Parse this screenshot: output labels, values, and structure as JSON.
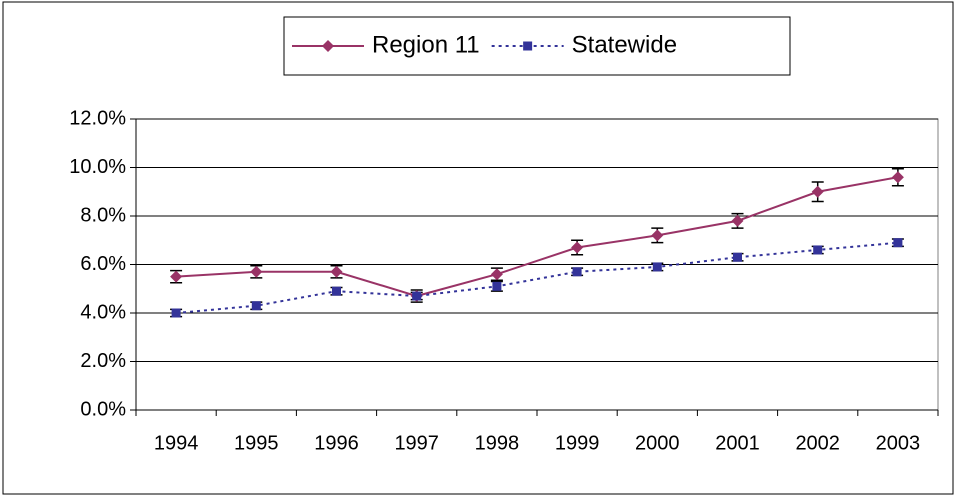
{
  "chart_data": {
    "type": "line",
    "categories": [
      "1994",
      "1995",
      "1996",
      "1997",
      "1998",
      "1999",
      "2000",
      "2001",
      "2002",
      "2003"
    ],
    "series": [
      {
        "name": "Region 11",
        "color": "#993366",
        "marker": "diamond",
        "dash": "solid",
        "values": [
          5.5,
          5.7,
          5.7,
          4.7,
          5.6,
          6.7,
          7.2,
          7.8,
          9.0,
          9.6
        ],
        "errors": [
          0.25,
          0.25,
          0.25,
          0.25,
          0.25,
          0.3,
          0.3,
          0.3,
          0.4,
          0.35
        ]
      },
      {
        "name": "Statewide",
        "color": "#333399",
        "marker": "square",
        "dash": "dotted",
        "values": [
          4.0,
          4.3,
          4.9,
          4.7,
          5.1,
          5.7,
          5.9,
          6.3,
          6.6,
          6.9
        ],
        "errors": [
          0.15,
          0.15,
          0.15,
          0.15,
          0.2,
          0.15,
          0.15,
          0.15,
          0.15,
          0.15
        ]
      }
    ],
    "ylim": [
      0,
      12
    ],
    "yticks": [
      {
        "value": 0,
        "label": "0.0%"
      },
      {
        "value": 2,
        "label": "2.0%"
      },
      {
        "value": 4,
        "label": "4.0%"
      },
      {
        "value": 6,
        "label": "6.0%"
      },
      {
        "value": 8,
        "label": "8.0%"
      },
      {
        "value": 10,
        "label": "10.0%"
      },
      {
        "value": 12,
        "label": "12.0%"
      }
    ],
    "grid": true,
    "legend": "top"
  }
}
